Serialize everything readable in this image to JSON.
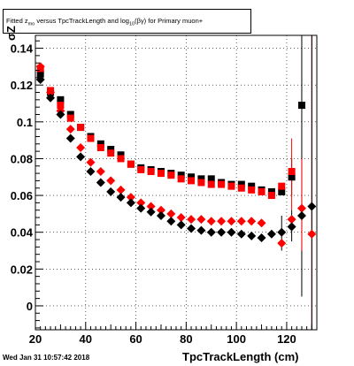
{
  "title_prefix": "Fitted  z",
  "title_sub1": "mo",
  "title_mid": " versus TpcTrackLength and log",
  "title_sub2": "10",
  "title_suffix": "(βγ) for Primary muon+",
  "footer_date": "Wed Jan 31 10:57:42 2018",
  "chart_data": {
    "type": "scatter",
    "title": "Fitted  zmo versus TpcTrackLength and log10(βγ) for Primary muon+",
    "xlabel": "TpcTrackLength (cm)",
    "ylabel": "σZ",
    "xlim": [
      20,
      132
    ],
    "ylim": [
      -0.013,
      0.147
    ],
    "xticks": [
      20,
      40,
      60,
      80,
      100,
      120
    ],
    "yticks": [
      0,
      0.02,
      0.04,
      0.06,
      0.08,
      0.1,
      0.12,
      0.14
    ],
    "ytick_labels": [
      "0",
      "0.02",
      "0.04",
      "0.06",
      "0.08",
      "0.1",
      "0.12",
      "0.14"
    ],
    "grid": true,
    "series": [
      {
        "marker": "square",
        "color": "#000000",
        "points": [
          [
            22,
            0.126
          ],
          [
            26,
            0.116
          ],
          [
            30,
            0.112
          ],
          [
            34,
            0.104
          ],
          [
            38,
            0.097
          ],
          [
            42,
            0.092
          ],
          [
            46,
            0.088
          ],
          [
            50,
            0.085
          ],
          [
            54,
            0.082
          ],
          [
            58,
            0.077
          ],
          [
            62,
            0.075
          ],
          [
            66,
            0.074
          ],
          [
            70,
            0.073
          ],
          [
            74,
            0.072
          ],
          [
            78,
            0.071
          ],
          [
            82,
            0.07
          ],
          [
            86,
            0.069
          ],
          [
            90,
            0.069
          ],
          [
            94,
            0.067
          ],
          [
            98,
            0.066
          ],
          [
            102,
            0.066
          ],
          [
            106,
            0.065
          ],
          [
            110,
            0.063
          ],
          [
            114,
            0.062
          ],
          [
            118,
            0.062
          ],
          [
            122,
            0.07
          ],
          [
            126,
            0.109
          ],
          [
            130,
            0.15
          ]
        ],
        "errors": [
          [
            122,
            0.06,
            0.08
          ],
          [
            126,
            0.005,
            0.15
          ]
        ]
      },
      {
        "marker": "square",
        "color": "#ff0000",
        "points": [
          [
            22,
            0.129
          ],
          [
            26,
            0.117
          ],
          [
            30,
            0.109
          ],
          [
            34,
            0.102
          ],
          [
            38,
            0.097
          ],
          [
            42,
            0.091
          ],
          [
            46,
            0.086
          ],
          [
            50,
            0.083
          ],
          [
            54,
            0.08
          ],
          [
            58,
            0.077
          ],
          [
            62,
            0.074
          ],
          [
            66,
            0.073
          ],
          [
            70,
            0.072
          ],
          [
            74,
            0.071
          ],
          [
            78,
            0.069
          ],
          [
            82,
            0.068
          ],
          [
            86,
            0.067
          ],
          [
            90,
            0.066
          ],
          [
            94,
            0.066
          ],
          [
            98,
            0.065
          ],
          [
            102,
            0.064
          ],
          [
            106,
            0.063
          ],
          [
            110,
            0.062
          ],
          [
            114,
            0.06
          ],
          [
            118,
            0.065
          ],
          [
            122,
            0.073
          ]
        ],
        "errors": [
          [
            122,
            0.052,
            0.091
          ]
        ]
      },
      {
        "marker": "diamond",
        "color": "#ff0000",
        "points": [
          [
            22,
            0.13
          ],
          [
            26,
            0.116
          ],
          [
            30,
            0.106
          ],
          [
            34,
            0.096
          ],
          [
            38,
            0.086
          ],
          [
            42,
            0.078
          ],
          [
            46,
            0.073
          ],
          [
            50,
            0.068
          ],
          [
            54,
            0.063
          ],
          [
            58,
            0.059
          ],
          [
            62,
            0.056
          ],
          [
            66,
            0.054
          ],
          [
            70,
            0.052
          ],
          [
            74,
            0.05
          ],
          [
            78,
            0.048
          ],
          [
            82,
            0.047
          ],
          [
            86,
            0.047
          ],
          [
            90,
            0.046
          ],
          [
            94,
            0.046
          ],
          [
            98,
            0.046
          ],
          [
            102,
            0.046
          ],
          [
            106,
            0.046
          ],
          [
            110,
            0.045
          ],
          [
            118,
            0.034
          ],
          [
            122,
            0.047
          ],
          [
            126,
            0.053
          ],
          [
            130,
            0.039
          ]
        ],
        "errors": [
          [
            126,
            0.03,
            0.08
          ],
          [
            130,
            -0.013,
            0.15
          ]
        ]
      },
      {
        "marker": "diamond",
        "color": "#000000",
        "points": [
          [
            22,
            0.123
          ],
          [
            26,
            0.113
          ],
          [
            30,
            0.104
          ],
          [
            34,
            0.091
          ],
          [
            38,
            0.081
          ],
          [
            42,
            0.073
          ],
          [
            46,
            0.067
          ],
          [
            50,
            0.062
          ],
          [
            54,
            0.059
          ],
          [
            58,
            0.056
          ],
          [
            62,
            0.053
          ],
          [
            66,
            0.051
          ],
          [
            70,
            0.049
          ],
          [
            74,
            0.046
          ],
          [
            78,
            0.044
          ],
          [
            82,
            0.042
          ],
          [
            86,
            0.041
          ],
          [
            90,
            0.04
          ],
          [
            94,
            0.04
          ],
          [
            98,
            0.04
          ],
          [
            102,
            0.039
          ],
          [
            106,
            0.038
          ],
          [
            110,
            0.037
          ],
          [
            114,
            0.039
          ],
          [
            118,
            0.04
          ],
          [
            122,
            0.043
          ],
          [
            126,
            0.049
          ],
          [
            130,
            0.054
          ]
        ],
        "errors": [
          [
            118,
            0.03,
            0.049
          ],
          [
            122,
            0.035,
            0.052
          ]
        ]
      }
    ]
  }
}
